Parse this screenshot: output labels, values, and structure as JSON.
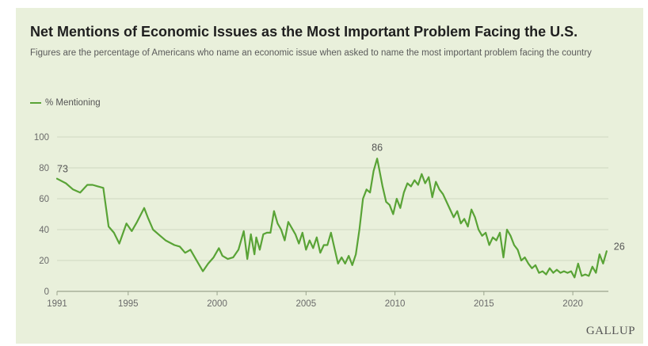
{
  "colors": {
    "background": "#e9f0db",
    "line": "#59a336",
    "grid": "#cfd8c0"
  },
  "brand": "GALLUP",
  "chart_data": {
    "type": "line",
    "title": "Net Mentions of Economic Issues as the Most Important Problem Facing the U.S.",
    "subtitle": "Figures are the percentage of Americans who name an economic issue when asked to name the most important problem facing the country",
    "legend_position": "top-left",
    "grid": "horizontal",
    "xlim": [
      1991,
      2022
    ],
    "ylim": [
      0,
      100
    ],
    "x_ticks": [
      1991,
      1995,
      2000,
      2005,
      2010,
      2015,
      2020
    ],
    "y_ticks": [
      0,
      20,
      40,
      60,
      80,
      100
    ],
    "series": [
      {
        "name": "% Mentioning",
        "color": "#59a336",
        "x": [
          1991.0,
          1991.5,
          1991.9,
          1992.3,
          1992.7,
          1993.0,
          1993.3,
          1993.6,
          1993.9,
          1994.2,
          1994.5,
          1994.9,
          1995.2,
          1995.5,
          1995.9,
          1996.1,
          1996.4,
          1996.8,
          1997.1,
          1997.6,
          1997.9,
          1998.2,
          1998.5,
          1998.8,
          1999.2,
          1999.5,
          1999.8,
          2000.1,
          2000.3,
          2000.6,
          2000.9,
          2001.2,
          2001.5,
          2001.7,
          2001.9,
          2002.1,
          2002.2,
          2002.4,
          2002.6,
          2002.8,
          2003.0,
          2003.2,
          2003.4,
          2003.6,
          2003.8,
          2004.0,
          2004.2,
          2004.4,
          2004.6,
          2004.8,
          2005.0,
          2005.2,
          2005.4,
          2005.6,
          2005.8,
          2006.0,
          2006.2,
          2006.4,
          2006.6,
          2006.8,
          2007.0,
          2007.2,
          2007.4,
          2007.6,
          2007.8,
          2008.0,
          2008.2,
          2008.4,
          2008.6,
          2008.8,
          2009.0,
          2009.1,
          2009.3,
          2009.5,
          2009.7,
          2009.9,
          2010.1,
          2010.3,
          2010.5,
          2010.7,
          2010.9,
          2011.1,
          2011.3,
          2011.5,
          2011.7,
          2011.9,
          2012.1,
          2012.3,
          2012.5,
          2012.7,
          2012.9,
          2013.1,
          2013.3,
          2013.5,
          2013.7,
          2013.9,
          2014.1,
          2014.3,
          2014.5,
          2014.7,
          2014.9,
          2015.1,
          2015.3,
          2015.5,
          2015.7,
          2015.9,
          2016.1,
          2016.3,
          2016.5,
          2016.7,
          2016.9,
          2017.1,
          2017.3,
          2017.5,
          2017.7,
          2017.9,
          2018.1,
          2018.3,
          2018.5,
          2018.7,
          2018.9,
          2019.1,
          2019.3,
          2019.5,
          2019.7,
          2019.9,
          2020.1,
          2020.3,
          2020.5,
          2020.7,
          2020.9,
          2021.1,
          2021.3,
          2021.5,
          2021.7,
          2021.9
        ],
        "values": [
          73,
          70,
          66,
          64,
          69,
          69,
          68,
          67,
          42,
          38,
          31,
          44,
          39,
          45,
          54,
          48,
          40,
          36,
          33,
          30,
          29,
          25,
          27,
          21,
          13,
          18,
          22,
          28,
          23,
          21,
          22,
          27,
          39,
          21,
          37,
          24,
          35,
          27,
          37,
          38,
          38,
          52,
          44,
          40,
          33,
          45,
          41,
          37,
          31,
          38,
          27,
          33,
          28,
          35,
          25,
          30,
          30,
          38,
          28,
          18,
          22,
          18,
          23,
          17,
          24,
          40,
          60,
          66,
          64,
          78,
          86,
          80,
          68,
          58,
          56,
          50,
          60,
          54,
          64,
          70,
          68,
          72,
          69,
          76,
          70,
          74,
          61,
          71,
          66,
          63,
          58,
          53,
          48,
          52,
          44,
          47,
          42,
          53,
          48,
          40,
          36,
          38,
          30,
          35,
          33,
          38,
          22,
          40,
          36,
          30,
          27,
          20,
          22,
          18,
          15,
          17,
          12,
          13,
          11,
          15,
          12,
          14,
          12,
          13,
          12,
          13,
          9,
          18,
          10,
          11,
          10,
          16,
          12,
          24,
          18,
          26
        ]
      }
    ],
    "annotations": [
      {
        "x": 1991.0,
        "y": 73,
        "text": "73"
      },
      {
        "x": 2009.0,
        "y": 86,
        "text": "86"
      },
      {
        "x": 2021.9,
        "y": 26,
        "text": "26"
      }
    ]
  }
}
